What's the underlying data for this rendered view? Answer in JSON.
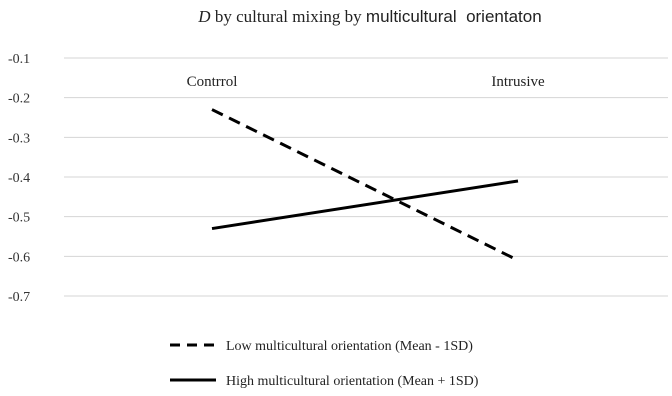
{
  "chart_data": {
    "type": "line",
    "title_italic": "D",
    "title_middle": " by cultural mixing by ",
    "title_bold": "multicultural  orientaton",
    "categories": [
      "Contrrol",
      "Intrusive"
    ],
    "yticks": [
      "-0.1",
      "-0.2",
      "-0.3",
      "-0.4",
      "-0.5",
      "-0.6",
      "-0.7"
    ],
    "ytick_values": [
      -0.1,
      -0.2,
      -0.3,
      -0.4,
      -0.5,
      -0.6,
      -0.7
    ],
    "ylim": [
      -0.7,
      -0.1
    ],
    "grid": true,
    "legend_position": "bottom",
    "series": [
      {
        "name": "Low multicultural orientation (Mean - 1SD)",
        "values": [
          -0.23,
          -0.61
        ],
        "dash": "dashed",
        "color": "#000000"
      },
      {
        "name": "High multicultural orientation (Mean + 1SD)",
        "values": [
          -0.53,
          -0.41
        ],
        "dash": "solid",
        "color": "#000000"
      }
    ]
  }
}
